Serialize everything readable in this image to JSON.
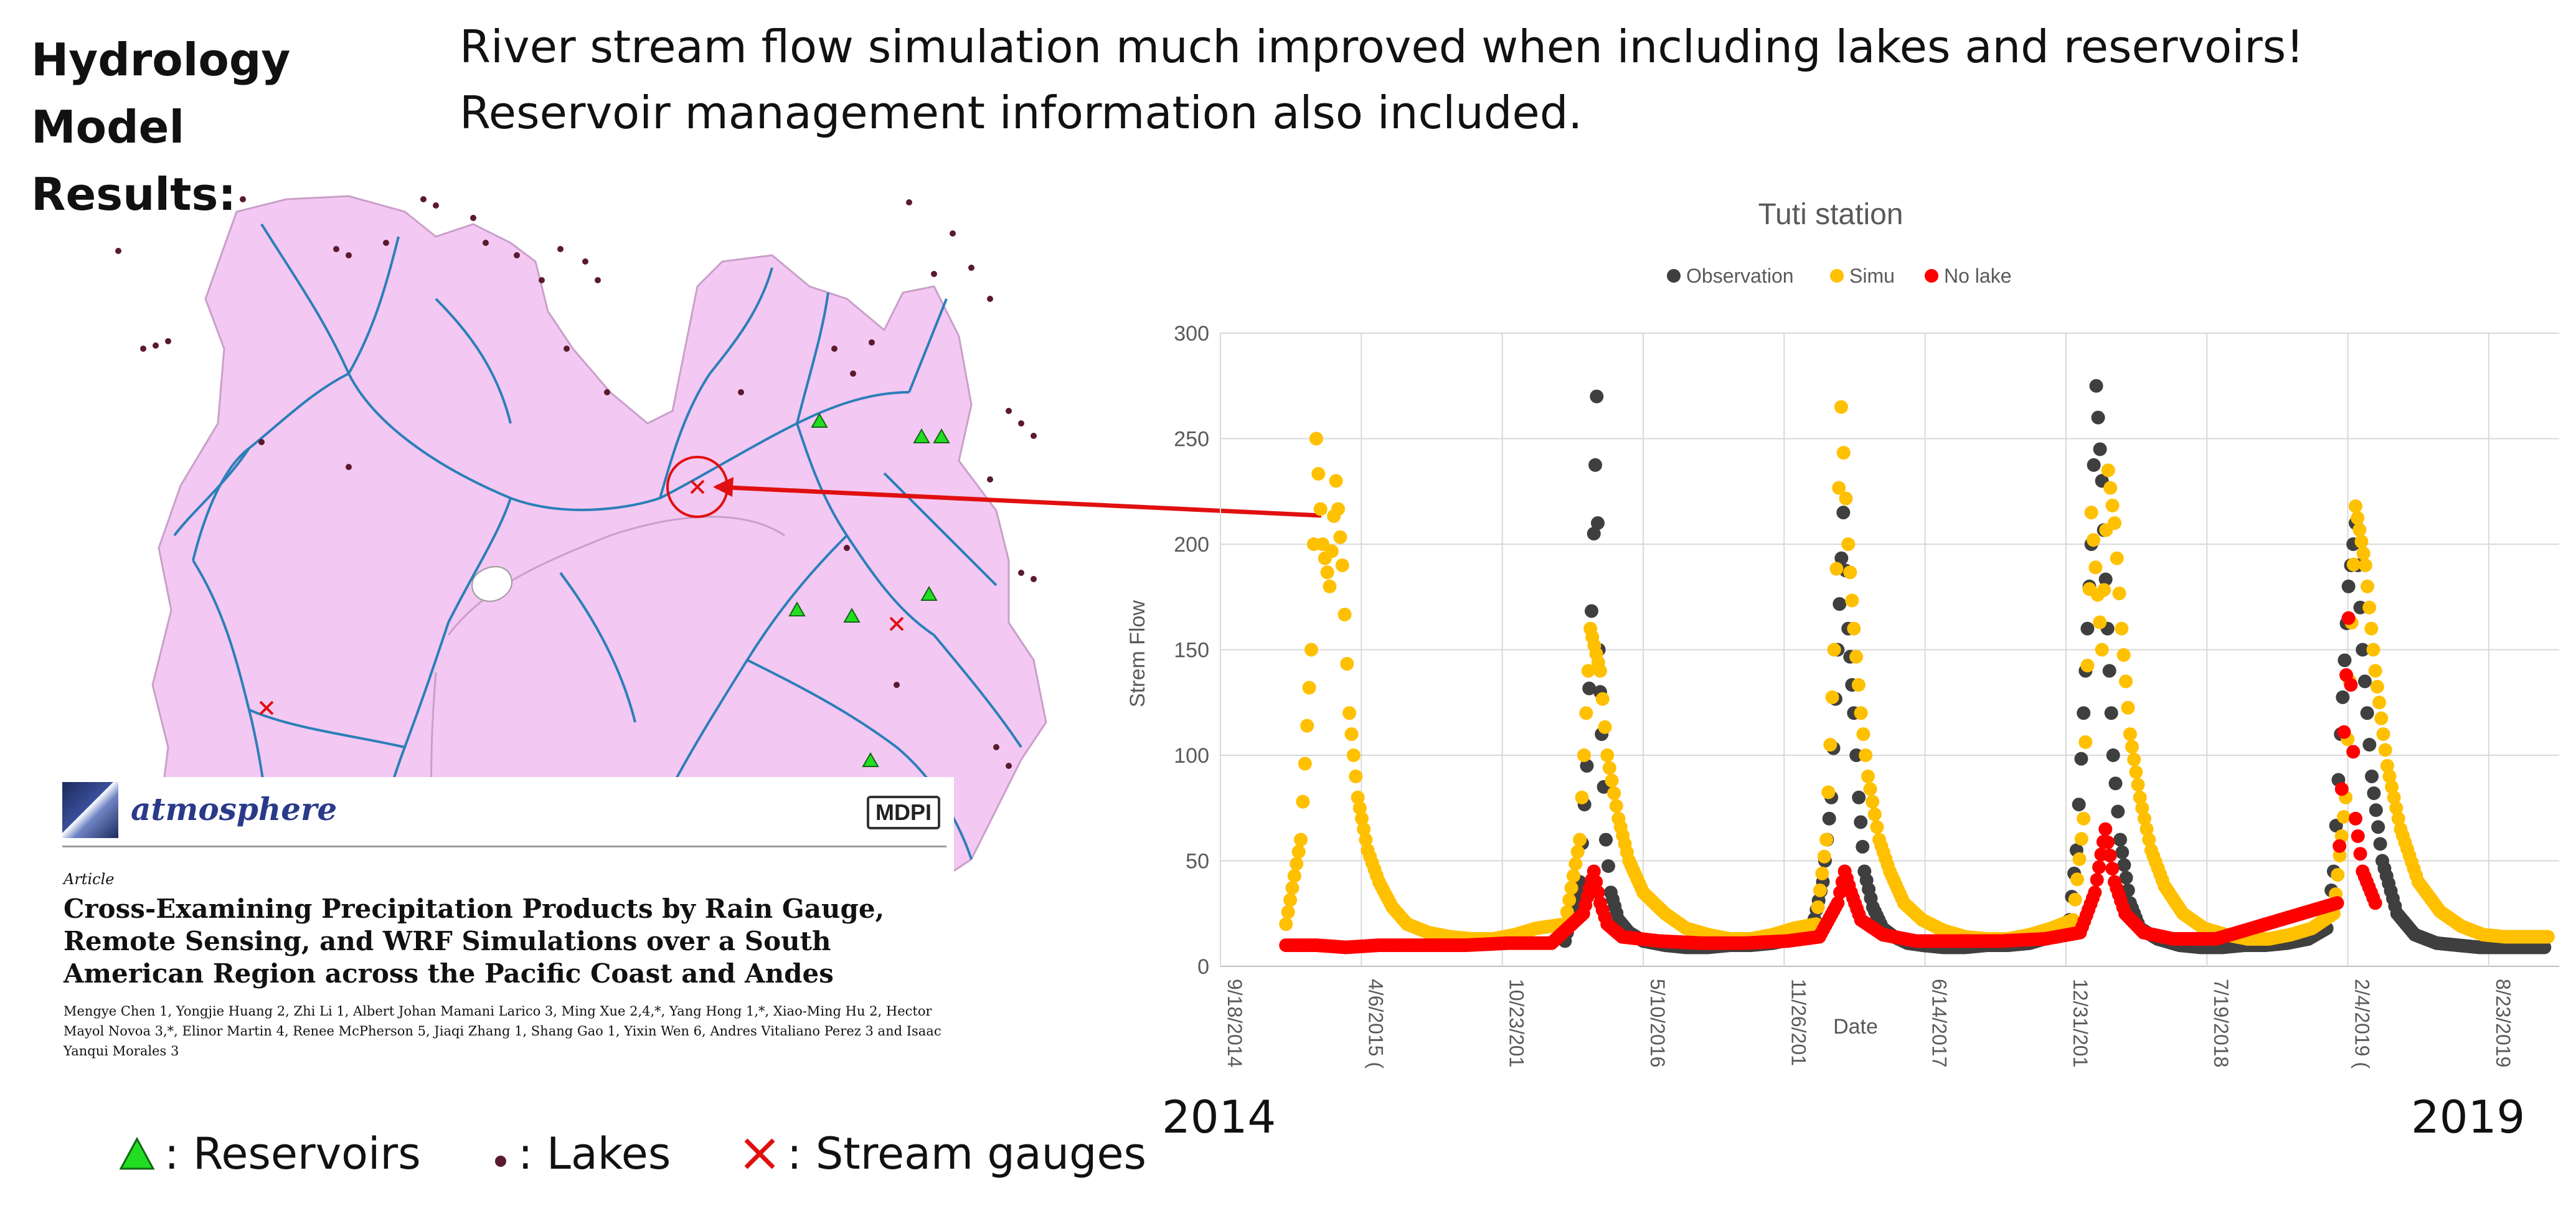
{
  "header": {
    "title_left_line1": "Hydrology Model",
    "title_left_line2": "Results:",
    "headline_line1": "River stream flow simulation much improved when including lakes and reservoirs!",
    "headline_line2": "Reservoir management information also included."
  },
  "paper": {
    "journal": "atmosphere",
    "publisher": "MDPI",
    "article_type": "Article",
    "title": "Cross-Examining Precipitation Products by Rain Gauge, Remote Sensing, and WRF Simulations over a South American Region across the Pacific Coast and Andes",
    "authors": "Mengye Chen 1, Yongjie Huang 2, Zhi Li 1, Albert Johan Mamani Larico 3, Ming Xue 2,4,*, Yang Hong 1,*, Xiao-Ming Hu 2, Hector Mayol Novoa 3,*, Elinor Martin 4, Renee McPherson 5, Jiaqi Zhang 1, Shang Gao 1, Yixin Wen 6, Andres Vitaliano Perez 3 and Isaac Yanqui Morales 3"
  },
  "map_legend": {
    "reservoirs": ": Reservoirs",
    "lakes": ": Lakes",
    "stream_gauges": ": Stream gauges"
  },
  "year_labels": {
    "start": "2014",
    "end": "2019"
  },
  "colors": {
    "basin_fill": "#f3c8f3",
    "river": "#2b7fb8",
    "lake_dot": "#5a1a2e",
    "reservoir": "#22dd22",
    "gauge": "#e01010",
    "observation": "#3f3f3f",
    "simu": "#ffc000",
    "no_lake": "#ff0000"
  },
  "chart_data": {
    "type": "scatter",
    "title": "Tuti station",
    "xlabel": "Date",
    "ylabel": "Strem Flow",
    "ylim": [
      0,
      300
    ],
    "yticks": [
      0,
      50,
      100,
      150,
      200,
      250,
      300
    ],
    "xlim": [
      "2014-09-18",
      "2019-12-01"
    ],
    "xtick_labels": [
      "9/18/2014",
      "4/6/2015 (",
      "10/23/201",
      "5/10/2016",
      "11/26/201",
      "6/14/2017",
      "12/31/201",
      "7/19/2018",
      "2/4/2019 (",
      "8/23/2019"
    ],
    "xtick_dates": [
      "2014-09-18",
      "2015-04-06",
      "2015-10-23",
      "2016-05-10",
      "2016-11-26",
      "2017-06-14",
      "2017-12-31",
      "2018-07-19",
      "2019-02-04",
      "2019-08-23"
    ],
    "grid": true,
    "legend_position": "top",
    "series": [
      {
        "name": "Observation",
        "color": "#3f3f3f",
        "x": [
          "2016-01-20",
          "2016-02-10",
          "2016-02-20",
          "2016-03-01",
          "2016-03-05",
          "2016-03-08",
          "2016-03-12",
          "2016-03-18",
          "2016-03-25",
          "2016-04-05",
          "2016-04-20",
          "2016-05-10",
          "2016-06-10",
          "2016-07-10",
          "2016-08-10",
          "2016-09-10",
          "2016-10-10",
          "2016-11-10",
          "2016-12-10",
          "2017-01-05",
          "2017-01-20",
          "2017-02-01",
          "2017-02-10",
          "2017-02-18",
          "2017-02-25",
          "2017-03-05",
          "2017-03-12",
          "2017-03-20",
          "2017-04-01",
          "2017-04-15",
          "2017-05-01",
          "2017-05-20",
          "2017-06-10",
          "2017-07-10",
          "2017-08-10",
          "2017-09-10",
          "2017-10-10",
          "2017-11-10",
          "2017-12-10",
          "2018-01-05",
          "2018-01-15",
          "2018-01-25",
          "2018-02-05",
          "2018-02-12",
          "2018-02-20",
          "2018-02-28",
          "2018-03-08",
          "2018-03-18",
          "2018-04-01",
          "2018-04-15",
          "2018-05-10",
          "2018-06-10",
          "2018-07-10",
          "2018-08-10",
          "2018-09-10",
          "2018-10-10",
          "2018-11-10",
          "2018-12-10",
          "2019-01-05",
          "2019-01-15",
          "2019-01-25",
          "2019-02-05",
          "2019-02-15",
          "2019-02-25",
          "2019-03-10",
          "2019-03-25",
          "2019-04-15",
          "2019-05-10",
          "2019-06-10",
          "2019-07-10",
          "2019-08-10",
          "2019-09-10",
          "2019-10-10",
          "2019-11-10"
        ],
        "y": [
          12,
          40,
          95,
          205,
          270,
          150,
          110,
          60,
          35,
          22,
          16,
          12,
          10,
          9,
          9,
          10,
          10,
          11,
          13,
          18,
          40,
          80,
          150,
          215,
          160,
          120,
          80,
          45,
          28,
          18,
          14,
          11,
          10,
          9,
          9,
          10,
          10,
          11,
          14,
          22,
          55,
          120,
          200,
          275,
          230,
          160,
          100,
          60,
          30,
          18,
          13,
          10,
          9,
          9,
          10,
          10,
          11,
          13,
          18,
          45,
          110,
          180,
          210,
          150,
          90,
          50,
          25,
          15,
          11,
          10,
          9,
          9,
          9,
          9
        ]
      },
      {
        "name": "Simu",
        "color": "#ffc000",
        "x": [
          "2014-12-20",
          "2015-01-10",
          "2015-01-25",
          "2015-02-01",
          "2015-02-10",
          "2015-02-20",
          "2015-03-01",
          "2015-03-10",
          "2015-03-20",
          "2015-04-01",
          "2015-04-15",
          "2015-05-01",
          "2015-05-20",
          "2015-06-10",
          "2015-07-10",
          "2015-08-10",
          "2015-09-10",
          "2015-10-10",
          "2015-11-10",
          "2015-12-10",
          "2016-01-20",
          "2016-02-10",
          "2016-02-25",
          "2016-03-10",
          "2016-03-20",
          "2016-04-05",
          "2016-04-20",
          "2016-05-10",
          "2016-06-10",
          "2016-07-10",
          "2016-08-10",
          "2016-09-10",
          "2016-10-10",
          "2016-11-10",
          "2016-12-10",
          "2017-01-10",
          "2017-01-25",
          "2017-02-05",
          "2017-02-15",
          "2017-02-25",
          "2017-03-05",
          "2017-03-15",
          "2017-03-25",
          "2017-04-10",
          "2017-04-25",
          "2017-05-15",
          "2017-06-10",
          "2017-07-10",
          "2017-08-10",
          "2017-09-10",
          "2017-10-10",
          "2017-11-10",
          "2017-12-10",
          "2018-01-10",
          "2018-01-25",
          "2018-02-05",
          "2018-02-20",
          "2018-03-01",
          "2018-03-10",
          "2018-03-20",
          "2018-04-01",
          "2018-04-15",
          "2018-05-01",
          "2018-05-20",
          "2018-06-15",
          "2018-07-15",
          "2018-08-15",
          "2018-09-15",
          "2018-10-15",
          "2018-11-15",
          "2018-12-15",
          "2019-01-15",
          "2019-02-01",
          "2019-02-15",
          "2019-03-01",
          "2019-03-15",
          "2019-04-01",
          "2019-04-20",
          "2019-05-15",
          "2019-06-15",
          "2019-07-15",
          "2019-08-15",
          "2019-09-15",
          "2019-10-15",
          "2019-11-15"
        ],
        "y": [
          20,
          60,
          150,
          250,
          200,
          180,
          230,
          190,
          120,
          80,
          55,
          40,
          28,
          20,
          16,
          14,
          13,
          13,
          15,
          18,
          20,
          60,
          160,
          140,
          100,
          70,
          50,
          35,
          25,
          18,
          15,
          13,
          13,
          15,
          18,
          20,
          60,
          150,
          265,
          200,
          160,
          120,
          90,
          60,
          45,
          30,
          22,
          17,
          14,
          13,
          13,
          15,
          18,
          22,
          70,
          215,
          150,
          235,
          210,
          160,
          110,
          80,
          55,
          38,
          25,
          18,
          15,
          13,
          13,
          15,
          18,
          25,
          80,
          218,
          190,
          140,
          95,
          65,
          40,
          26,
          19,
          15,
          14,
          14,
          14
        ]
      },
      {
        "name": "No lake",
        "color": "#ff0000",
        "x": [
          "2014-12-20",
          "2015-02-01",
          "2015-03-15",
          "2015-05-01",
          "2015-07-01",
          "2015-09-01",
          "2015-11-01",
          "2016-01-01",
          "2016-02-15",
          "2016-03-01",
          "2016-03-10",
          "2016-03-20",
          "2016-04-10",
          "2016-06-01",
          "2016-08-01",
          "2016-10-01",
          "2016-12-01",
          "2017-01-15",
          "2017-02-10",
          "2017-02-20",
          "2017-03-01",
          "2017-03-15",
          "2017-04-15",
          "2017-06-01",
          "2017-08-01",
          "2017-10-01",
          "2017-12-01",
          "2018-01-20",
          "2018-02-10",
          "2018-02-25",
          "2018-03-10",
          "2018-03-25",
          "2018-04-20",
          "2018-06-01",
          "2018-08-01",
          "2019-01-20",
          "2019-02-05",
          "2019-02-15",
          "2019-02-25",
          "2019-03-15"
        ],
        "y": [
          10,
          10,
          9,
          10,
          10,
          10,
          11,
          11,
          25,
          45,
          30,
          20,
          14,
          12,
          11,
          11,
          12,
          14,
          30,
          45,
          35,
          22,
          15,
          12,
          12,
          12,
          13,
          16,
          35,
          65,
          40,
          25,
          16,
          13,
          13,
          30,
          165,
          70,
          45,
          30
        ]
      }
    ]
  }
}
